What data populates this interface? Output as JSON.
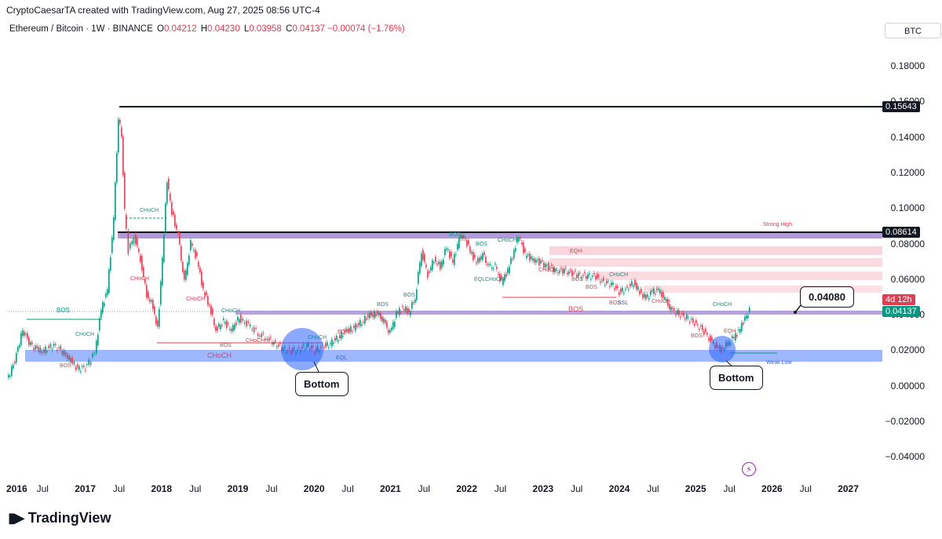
{
  "header": {
    "credit": "CryptoCaesarTA created with TradingView.com, Aug 27, 2025 08:56 UTC-4",
    "symbol": "Ethereum / Bitcoin · 1W · BINANCE",
    "o_label": "O",
    "o_value": "0.04212",
    "h_label": "H",
    "h_value": "0.04230",
    "l_label": "L",
    "l_value": "0.03958",
    "c_label": "C",
    "c_value": "0.04137",
    "change": "−0.00074 (−1.76%)",
    "currency": "BTC"
  },
  "y_axis": [
    "0.18000",
    "0.16000",
    "0.14000",
    "0.12000",
    "0.10000",
    "0.08000",
    "0.06000",
    "0.04000",
    "0.02000",
    "0.00000",
    "−0.02000",
    "−0.04000"
  ],
  "x_axis": [
    {
      "label": "2016",
      "bold": true
    },
    {
      "label": "Jul",
      "bold": false
    },
    {
      "label": "2017",
      "bold": true
    },
    {
      "label": "Jul",
      "bold": false
    },
    {
      "label": "2018",
      "bold": true
    },
    {
      "label": "Jul",
      "bold": false
    },
    {
      "label": "2019",
      "bold": true
    },
    {
      "label": "Jul",
      "bold": false
    },
    {
      "label": "2020",
      "bold": true
    },
    {
      "label": "Jul",
      "bold": false
    },
    {
      "label": "2021",
      "bold": true
    },
    {
      "label": "Jul",
      "bold": false
    },
    {
      "label": "2022",
      "bold": true
    },
    {
      "label": "Jul",
      "bold": false
    },
    {
      "label": "2023",
      "bold": true
    },
    {
      "label": "Jul",
      "bold": false
    },
    {
      "label": "2024",
      "bold": true
    },
    {
      "label": "Jul",
      "bold": false
    },
    {
      "label": "2025",
      "bold": true
    },
    {
      "label": "Jul",
      "bold": false
    },
    {
      "label": "2026",
      "bold": true
    },
    {
      "label": "Jul",
      "bold": false
    },
    {
      "label": "2027",
      "bold": true
    }
  ],
  "price_tags": {
    "ath": "0.15643",
    "strong_high": "0.08614",
    "countdown": "4d 12h",
    "last": "0.04137"
  },
  "callout_value": "0.04080",
  "bottom_labels": [
    "Bottom",
    "Bottom"
  ],
  "smc_labels": {
    "bos": "BOS",
    "choch": "CHoCH",
    "eqh": "EQH",
    "eql": "EQL",
    "eql_choch": "EQLCHoCH",
    "ssl": "SSL",
    "strong_high": "Strong High",
    "weak_low": "Weak Low"
  },
  "branding": "TradingView",
  "colors": {
    "up": "#089981",
    "down": "#e33d53",
    "zone_blue": "#2962ff",
    "zone_purple": "#7e57c2",
    "zone_red": "#f7c5cc"
  }
}
